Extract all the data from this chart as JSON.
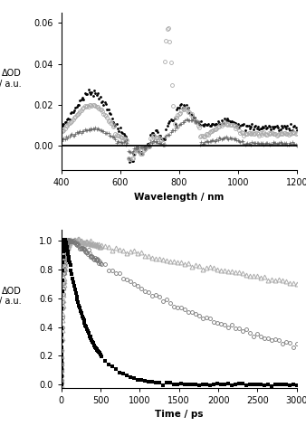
{
  "upper": {
    "xlabel": "Wavelength / nm",
    "ylabel": "ΔOD\n/ a.u.",
    "xlim": [
      400,
      1200
    ],
    "ylim": [
      -0.012,
      0.065
    ],
    "yticks": [
      0.0,
      0.02,
      0.04,
      0.06
    ],
    "xticks": [
      400,
      600,
      800,
      1000,
      1200
    ]
  },
  "lower": {
    "xlabel": "Time / ps",
    "ylabel": "ΔOD\n/ a.u.",
    "xlim": [
      0,
      3000
    ],
    "ylim": [
      -0.02,
      1.07
    ],
    "yticks": [
      0.0,
      0.2,
      0.4,
      0.6,
      0.8,
      1.0
    ],
    "xticks": [
      0,
      500,
      1000,
      1500,
      2000,
      2500,
      3000
    ]
  }
}
